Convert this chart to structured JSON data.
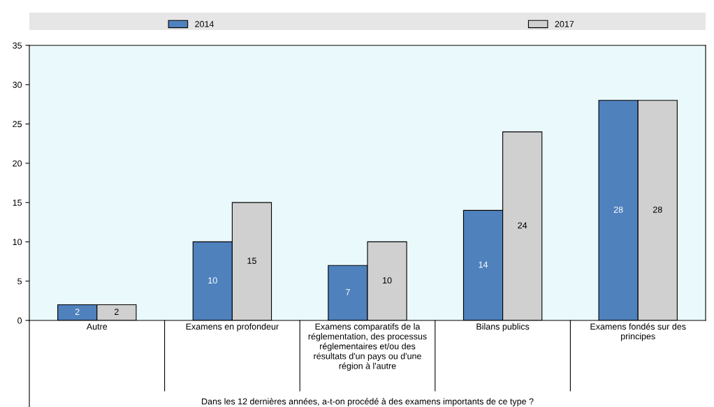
{
  "chart_data": {
    "type": "bar",
    "xlabel": "Dans les 12 dernières années, a-t-on procédé à des examens importants de ce type ?",
    "categories": [
      "Autre",
      "Examens en profondeur",
      "Examens comparatifs de la réglementation, des processus réglementaires et/ou des résultats d'un pays ou d'une région à l'autre",
      "Bilans publics",
      "Examens fondés sur des principes"
    ],
    "series": [
      {
        "name": "2014",
        "color": "#4f81bd",
        "values": [
          2,
          10,
          7,
          14,
          28
        ]
      },
      {
        "name": "2017",
        "color": "#d0d0d0",
        "values": [
          2,
          15,
          10,
          24,
          28
        ]
      }
    ],
    "ylim": [
      0,
      35
    ],
    "yticks": [
      0,
      5,
      10,
      15,
      20,
      25,
      30,
      35
    ],
    "data_labels": true,
    "legend": "top"
  }
}
